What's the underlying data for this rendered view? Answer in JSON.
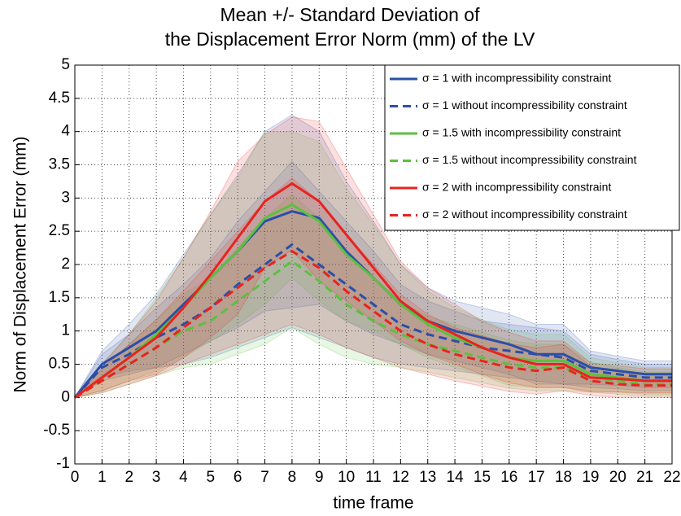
{
  "chart_data": {
    "type": "line",
    "title": [
      "Mean +/- Standard Deviation of",
      "the Displacement Error Norm (mm) of the LV"
    ],
    "x_label": "time frame",
    "y_label": "Norm of Displacement Error (mm)",
    "x": [
      0,
      1,
      2,
      3,
      4,
      5,
      6,
      7,
      8,
      9,
      10,
      11,
      12,
      13,
      14,
      15,
      16,
      17,
      18,
      19,
      20,
      21,
      22
    ],
    "xlim": [
      0,
      22
    ],
    "xticks": [
      0,
      1,
      2,
      3,
      4,
      5,
      6,
      7,
      8,
      9,
      10,
      11,
      12,
      13,
      14,
      15,
      16,
      17,
      18,
      19,
      20,
      21,
      22
    ],
    "ylim": [
      -1,
      5
    ],
    "yticks": [
      -1,
      -0.5,
      0,
      0.5,
      1,
      1.5,
      2,
      2.5,
      3,
      3.5,
      4,
      4.5,
      5
    ],
    "grid": true,
    "legend": "top-right",
    "series": [
      {
        "name": "σ = 1 with incompressibility constraint",
        "color": "#2a4fa8",
        "line_style": "solid",
        "values": [
          0,
          0.5,
          0.75,
          1.0,
          1.4,
          1.8,
          2.2,
          2.65,
          2.8,
          2.7,
          2.2,
          1.8,
          1.4,
          1.15,
          1.0,
          0.9,
          0.8,
          0.65,
          0.65,
          0.45,
          0.4,
          0.35,
          0.35
        ],
        "std": [
          0,
          0.2,
          0.35,
          0.55,
          0.75,
          0.95,
          1.15,
          1.35,
          1.45,
          1.3,
          1.05,
          0.85,
          0.6,
          0.5,
          0.45,
          0.45,
          0.45,
          0.45,
          0.45,
          0.25,
          0.22,
          0.2,
          0.2
        ]
      },
      {
        "name": "σ = 1 without incompressibility constraint",
        "color": "#2a4fa8",
        "line_style": "dashed",
        "values": [
          0,
          0.45,
          0.65,
          0.9,
          1.1,
          1.35,
          1.7,
          2.0,
          2.3,
          2.0,
          1.7,
          1.4,
          1.1,
          0.95,
          0.85,
          0.75,
          0.7,
          0.65,
          0.6,
          0.4,
          0.35,
          0.3,
          0.3
        ],
        "std": [
          0,
          0.2,
          0.3,
          0.45,
          0.6,
          0.75,
          0.95,
          1.1,
          1.25,
          1.1,
          0.95,
          0.8,
          0.6,
          0.5,
          0.45,
          0.4,
          0.4,
          0.4,
          0.4,
          0.25,
          0.22,
          0.2,
          0.2
        ]
      },
      {
        "name": "σ = 1.5 with incompressibility constraint",
        "color": "#5cc040",
        "line_style": "solid",
        "values": [
          0,
          0.3,
          0.6,
          0.95,
          1.35,
          1.8,
          2.2,
          2.7,
          2.9,
          2.65,
          2.15,
          1.8,
          1.4,
          1.1,
          0.9,
          0.75,
          0.6,
          0.55,
          0.55,
          0.35,
          0.3,
          0.25,
          0.25
        ],
        "std": [
          0,
          0.2,
          0.35,
          0.55,
          0.75,
          0.95,
          1.1,
          1.3,
          1.1,
          1.2,
          1.0,
          0.8,
          0.6,
          0.5,
          0.45,
          0.42,
          0.42,
          0.4,
          0.4,
          0.25,
          0.22,
          0.2,
          0.2
        ]
      },
      {
        "name": "σ = 1.5 without incompressibility constraint",
        "color": "#5cc040",
        "line_style": "dashed",
        "values": [
          0,
          0.25,
          0.5,
          0.75,
          1.0,
          1.15,
          1.45,
          1.75,
          2.05,
          1.75,
          1.4,
          1.15,
          0.95,
          0.8,
          0.7,
          0.6,
          0.5,
          0.45,
          0.45,
          0.3,
          0.25,
          0.2,
          0.2
        ],
        "std": [
          0,
          0.18,
          0.3,
          0.42,
          0.55,
          0.65,
          0.8,
          0.95,
          1.0,
          0.95,
          0.8,
          0.65,
          0.5,
          0.42,
          0.4,
          0.38,
          0.36,
          0.35,
          0.35,
          0.22,
          0.2,
          0.18,
          0.18
        ]
      },
      {
        "name": "σ = 2 with incompressibility constraint",
        "color": "#e8231f",
        "line_style": "solid",
        "values": [
          0,
          0.3,
          0.6,
          0.9,
          1.35,
          1.85,
          2.4,
          2.95,
          3.22,
          2.95,
          2.45,
          1.95,
          1.45,
          1.15,
          0.95,
          0.75,
          0.6,
          0.5,
          0.5,
          0.3,
          0.28,
          0.25,
          0.25
        ],
        "std": [
          0,
          0.2,
          0.35,
          0.55,
          0.75,
          0.95,
          1.15,
          1.0,
          1.0,
          1.2,
          1.0,
          0.8,
          0.6,
          0.5,
          0.45,
          0.4,
          0.38,
          0.35,
          0.35,
          0.22,
          0.2,
          0.18,
          0.18
        ]
      },
      {
        "name": "σ = 2 without incompressibility constraint",
        "color": "#e8231f",
        "line_style": "dashed",
        "values": [
          0,
          0.25,
          0.5,
          0.75,
          1.05,
          1.35,
          1.65,
          1.95,
          2.2,
          1.95,
          1.6,
          1.3,
          1.0,
          0.8,
          0.65,
          0.55,
          0.45,
          0.4,
          0.45,
          0.25,
          0.2,
          0.18,
          0.18
        ],
        "std": [
          0,
          0.18,
          0.3,
          0.42,
          0.55,
          0.7,
          0.85,
          1.0,
          1.1,
          1.0,
          0.85,
          0.7,
          0.55,
          0.45,
          0.4,
          0.38,
          0.36,
          0.35,
          0.35,
          0.22,
          0.2,
          0.18,
          0.18
        ]
      }
    ]
  }
}
